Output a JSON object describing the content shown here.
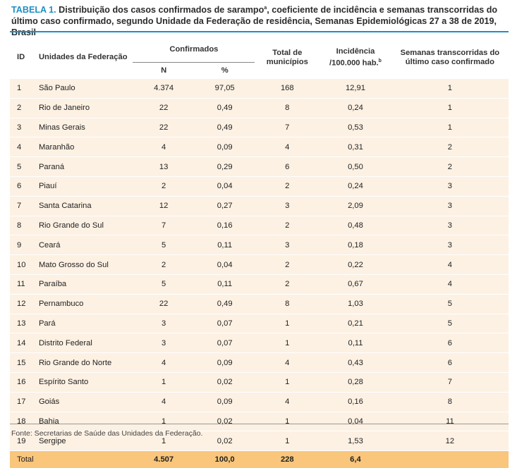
{
  "caption": {
    "label": "TABELA 1.",
    "text": "Distribuição dos casos confirmados de sarampo",
    "text_sup": "a",
    "text_rest": ", coeficiente de incidência e semanas transcorridas do último caso confirmado, segundo Unidade da Federação de residência, Semanas Epidemiológicas 27 a 38 de 2019, Brasil"
  },
  "headers": {
    "id": "ID",
    "uf": "Unidades da Federação",
    "confirmados": "Confirmados",
    "n": "N",
    "pct": "%",
    "municipios": "Total de municípios",
    "incidencia": "Incidência /100.000 hab.",
    "incidencia_sup": "b",
    "semanas": "Semanas transcorridas do último caso confirmado"
  },
  "rows": [
    {
      "id": "1",
      "uf": "São Paulo",
      "n": "4.374",
      "pct": "97,05",
      "mun": "168",
      "inc": "12,91",
      "sem": "1"
    },
    {
      "id": "2",
      "uf": "Rio de Janeiro",
      "n": "22",
      "pct": "0,49",
      "mun": "8",
      "inc": "0,24",
      "sem": "1"
    },
    {
      "id": "3",
      "uf": "Minas Gerais",
      "n": "22",
      "pct": "0,49",
      "mun": "7",
      "inc": "0,53",
      "sem": "1"
    },
    {
      "id": "4",
      "uf": "Maranhão",
      "n": "4",
      "pct": "0,09",
      "mun": "4",
      "inc": "0,31",
      "sem": "2"
    },
    {
      "id": "5",
      "uf": "Paraná",
      "n": "13",
      "pct": "0,29",
      "mun": "6",
      "inc": "0,50",
      "sem": "2"
    },
    {
      "id": "6",
      "uf": "Piauí",
      "n": "2",
      "pct": "0,04",
      "mun": "2",
      "inc": "0,24",
      "sem": "3"
    },
    {
      "id": "7",
      "uf": "Santa Catarina",
      "n": "12",
      "pct": "0,27",
      "mun": "3",
      "inc": "2,09",
      "sem": "3"
    },
    {
      "id": "8",
      "uf": "Rio Grande do Sul",
      "n": "7",
      "pct": "0,16",
      "mun": "2",
      "inc": "0,48",
      "sem": "3"
    },
    {
      "id": "9",
      "uf": "Ceará",
      "n": "5",
      "pct": "0,11",
      "mun": "3",
      "inc": "0,18",
      "sem": "3"
    },
    {
      "id": "10",
      "uf": "Mato Grosso do Sul",
      "n": "2",
      "pct": "0,04",
      "mun": "2",
      "inc": "0,22",
      "sem": "4"
    },
    {
      "id": "11",
      "uf": "Paraíba",
      "n": "5",
      "pct": "0,11",
      "mun": "2",
      "inc": "0,67",
      "sem": "4"
    },
    {
      "id": "12",
      "uf": "Pernambuco",
      "n": "22",
      "pct": "0,49",
      "mun": "8",
      "inc": "1,03",
      "sem": "5"
    },
    {
      "id": "13",
      "uf": "Pará",
      "n": "3",
      "pct": "0,07",
      "mun": "1",
      "inc": "0,21",
      "sem": "5"
    },
    {
      "id": "14",
      "uf": "Distrito Federal",
      "n": "3",
      "pct": "0,07",
      "mun": "1",
      "inc": "0,11",
      "sem": "6"
    },
    {
      "id": "15",
      "uf": "Rio Grande do Norte",
      "n": "4",
      "pct": "0,09",
      "mun": "4",
      "inc": "0,43",
      "sem": "6"
    },
    {
      "id": "16",
      "uf": "Espírito Santo",
      "n": "1",
      "pct": "0,02",
      "mun": "1",
      "inc": "0,28",
      "sem": "7"
    },
    {
      "id": "17",
      "uf": "Goiás",
      "n": "4",
      "pct": "0,09",
      "mun": "4",
      "inc": "0,16",
      "sem": "8"
    },
    {
      "id": "18",
      "uf": "Bahia",
      "n": "1",
      "pct": "0,02",
      "mun": "1",
      "inc": "0,04",
      "sem": "11"
    },
    {
      "id": "19",
      "uf": "Sergipe",
      "n": "1",
      "pct": "0,02",
      "mun": "1",
      "inc": "1,53",
      "sem": "12"
    }
  ],
  "total": {
    "label": "Total",
    "n": "4.507",
    "pct": "100,0",
    "mun": "228",
    "inc": "6,4",
    "sem": ""
  },
  "source": "Fonte: Secretarias de Saúde das Unidades da Federação.",
  "colors": {
    "accent": "#1f8fc4",
    "row_bg": "#fdf1e3",
    "total_bg": "#f9c67c"
  }
}
